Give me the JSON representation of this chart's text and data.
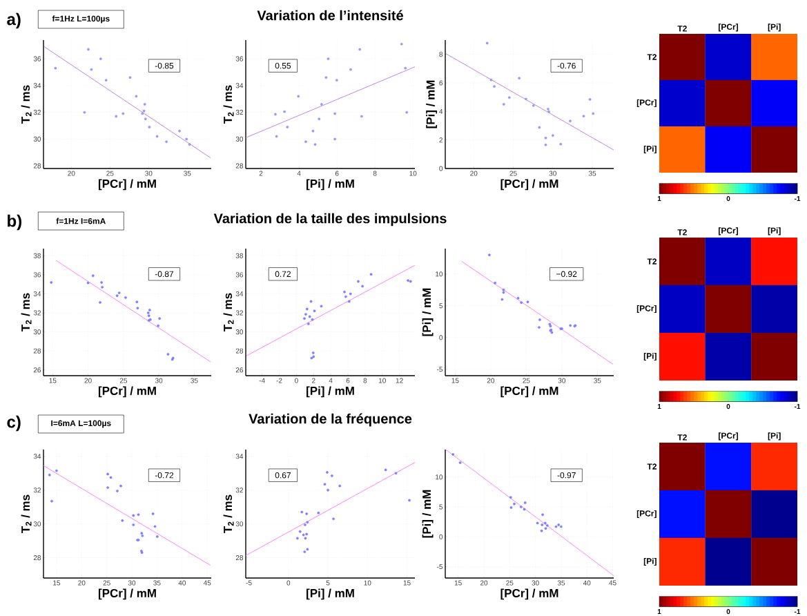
{
  "chart_data": [
    {
      "type": "scatter",
      "title": "a)",
      "subtitle": "f=1Hz L=100µs",
      "xlabel": "[PCr] / mM",
      "ylabel": "T$_{2}$ / ms",
      "xlim": [
        16.4,
        38.1
      ],
      "ylim": [
        27.8,
        37.4
      ],
      "xticks": [
        20,
        25,
        30,
        35
      ],
      "yticks": [
        28,
        30,
        32,
        34,
        36
      ],
      "grid": true,
      "annotations": [
        "-0.85"
      ],
      "series": [
        {
          "marker": "circle",
          "color": "#9999ee",
          "x": [
            17.95,
            22.2,
            22.6,
            23.8,
            24.5,
            21.7,
            25.8,
            26.7,
            27.6,
            28.4,
            29.2,
            29.4,
            29.5,
            29.6,
            30.1,
            31.1,
            32.3,
            34.0,
            34.9,
            35.3
          ],
          "values": [
            35.3,
            36.7,
            35.2,
            36.0,
            34.4,
            32.0,
            31.7,
            31.9,
            34.6,
            33.2,
            31.9,
            32.1,
            32.6,
            31.5,
            30.9,
            30.2,
            29.8,
            30.6,
            30.0,
            29.6
          ]
        },
        {
          "type": "line",
          "color": "#bb77dd",
          "x": [
            16.5,
            38
          ],
          "values": [
            36.9,
            28.6
          ]
        }
      ]
    },
    {
      "type": "scatter",
      "title": "Variation de l’intensité",
      "xlabel": "[Pi] / mM",
      "ylabel": "T$_{2}$ / ms",
      "xlim": [
        1.2,
        10.1
      ],
      "ylim": [
        27.8,
        37.4
      ],
      "xticks": [
        2,
        4,
        6,
        8,
        10
      ],
      "yticks": [
        28,
        30,
        32,
        34,
        36
      ],
      "grid": true,
      "annotations": [
        "0.55"
      ],
      "series": [
        {
          "marker": "circle",
          "color": "#9999ee",
          "x": [
            2.76,
            2.82,
            3.24,
            3.39,
            3.97,
            4.36,
            4.74,
            4.85,
            5.06,
            5.19,
            5.43,
            5.54,
            5.89,
            5.89,
            5.99,
            6.72,
            7.2,
            7.3,
            9.4,
            9.6,
            9.67
          ],
          "values": [
            31.85,
            30.2,
            32.05,
            30.9,
            33.2,
            29.8,
            30.6,
            29.6,
            31.5,
            32.6,
            34.6,
            36.0,
            31.9,
            30.0,
            34.4,
            35.2,
            36.7,
            31.7,
            37.1,
            35.3,
            32.0
          ]
        },
        {
          "type": "line",
          "color": "#bb77dd",
          "x": [
            1.2,
            10.1
          ],
          "values": [
            30.1,
            35.4
          ]
        }
      ]
    },
    {
      "type": "scatter",
      "xlabel": "[PCr] / mM",
      "ylabel": "[Pi] / mM",
      "xlim": [
        16.4,
        37.7
      ],
      "ylim": [
        0,
        9
      ],
      "xticks": [
        20,
        25,
        30,
        35
      ],
      "yticks": [
        0,
        2,
        4,
        6,
        8
      ],
      "grid": true,
      "annotations": [
        "-0.76"
      ],
      "series": [
        {
          "marker": "circle",
          "color": "#9999ee",
          "x": [
            21.7,
            22.2,
            22.6,
            23.8,
            24.5,
            25.75,
            26.6,
            27.55,
            28.3,
            29.1,
            29.1,
            29.4,
            29.5,
            30.0,
            31.0,
            32.2,
            33.9,
            34.7,
            35.1
          ],
          "values": [
            8.78,
            6.21,
            5.75,
            4.5,
            4.97,
            6.33,
            4.87,
            4.41,
            2.88,
            2.14,
            1.66,
            4.17,
            3.98,
            2.31,
            1.71,
            3.33,
            3.67,
            4.84,
            3.85
          ]
        },
        {
          "type": "line",
          "color": "#bb77dd",
          "x": [
            16.5,
            37.7
          ],
          "values": [
            8.04,
            1.3
          ]
        }
      ]
    },
    {
      "type": "heatmap",
      "categories": [
        "T2",
        "[PCr]",
        "[Pi]"
      ],
      "y_categories": [
        "T2",
        "[PCr]",
        "[Pi]"
      ],
      "cells": [
        [
          1,
          -0.85,
          0.55
        ],
        [
          -0.85,
          1,
          -0.76
        ],
        [
          0.55,
          -0.76,
          1
        ]
      ],
      "clim": [
        1,
        -1
      ],
      "cticks": [
        1,
        0,
        -1
      ]
    },
    {
      "type": "scatter",
      "title": "b)",
      "subtitle": "f=1Hz I=6mA",
      "xlabel": "[PCr] / mM",
      "ylabel": "T$_{2}$ / ms",
      "xlim": [
        13.7,
        37.4
      ],
      "ylim": [
        25.4,
        38.75
      ],
      "xticks": [
        15,
        20,
        25,
        30,
        35
      ],
      "yticks": [
        26,
        28,
        30,
        32,
        34,
        36,
        38
      ],
      "grid": true,
      "annotations": [
        "-0.87"
      ],
      "series": [
        {
          "marker": "circle",
          "color": "#7f7fff",
          "x": [
            14.8,
            20.0,
            20.7,
            21.9,
            22.0,
            21.7,
            24.1,
            24.4,
            25.3,
            26.9,
            27.0,
            28.5,
            28.6,
            28.7,
            28.6,
            28.8,
            29.9,
            30.1,
            31.3,
            32.0,
            31.9
          ],
          "values": [
            35.2,
            35.15,
            35.9,
            35.2,
            34.7,
            33.1,
            33.8,
            34.1,
            33.6,
            33.15,
            32.5,
            32.0,
            31.7,
            32.3,
            31.2,
            31.3,
            30.65,
            31.4,
            27.65,
            27.25,
            27.1
          ]
        },
        {
          "type": "line",
          "color": "#ff77ff",
          "x": [
            15.5,
            37.3
          ],
          "values": [
            37.5,
            26.85
          ]
        }
      ]
    },
    {
      "type": "scatter",
      "title": "Variation de la taille des impulsions",
      "xlabel": "[Pi] / mM",
      "ylabel": "T$_{2}$ / ms",
      "xlim": [
        -5.9,
        13.8
      ],
      "ylim": [
        25.4,
        38.75
      ],
      "xticks": [
        -4,
        -2,
        0,
        2,
        4,
        6,
        8,
        10,
        12
      ],
      "yticks": [
        26,
        28,
        30,
        32,
        34,
        36,
        38
      ],
      "grid": true,
      "annotations": [
        "0.72"
      ],
      "series": [
        {
          "marker": "circle",
          "color": "#7f7fff",
          "x": [
            0.93,
            1.09,
            1.24,
            1.4,
            1.55,
            1.7,
            1.86,
            1.77,
            1.96,
            2.0,
            2.1,
            2.9,
            5.6,
            5.75,
            6.15,
            6.3,
            7.2,
            7.7,
            8.7,
            13.0,
            13.3
          ],
          "values": [
            31.4,
            31.85,
            32.4,
            30.85,
            31.6,
            33.2,
            31.3,
            27.25,
            27.8,
            27.4,
            32.2,
            32.7,
            34.2,
            33.7,
            33.2,
            34.0,
            35.3,
            34.8,
            36.05,
            35.4,
            35.3
          ]
        },
        {
          "type": "line",
          "color": "#ff77ff",
          "x": [
            -5.8,
            13.8
          ],
          "values": [
            27.5,
            37.0
          ]
        }
      ]
    },
    {
      "type": "scatter",
      "xlabel": "[PCr] / mM",
      "ylabel": "[Pi] / mM",
      "xlim": [
        13.6,
        37.3
      ],
      "ylim": [
        -6,
        14
      ],
      "xticks": [
        15,
        20,
        25,
        30,
        35
      ],
      "yticks": [
        -5,
        0,
        5,
        10
      ],
      "grid": true,
      "annotations": [
        "−0.92"
      ],
      "series": [
        {
          "marker": "circle",
          "color": "#7f7fff",
          "x": [
            19.8,
            20.6,
            21.6,
            21.8,
            21.8,
            23.85,
            24.3,
            25.2,
            26.9,
            26.8,
            28.3,
            28.4,
            28.4,
            28.6,
            28.5,
            29.85,
            30.0,
            31.2,
            31.8,
            31.9
          ],
          "values": [
            13.0,
            8.6,
            6.0,
            7.5,
            7.1,
            6.2,
            5.5,
            5.6,
            2.8,
            1.6,
            2.1,
            1.8,
            1.1,
            0.8,
            1.2,
            1.4,
            1.4,
            1.9,
            1.8,
            1.9
          ]
        },
        {
          "type": "line",
          "color": "#ff77ff",
          "x": [
            15.9,
            37.2
          ],
          "values": [
            12.0,
            -4.2
          ]
        }
      ]
    },
    {
      "type": "heatmap",
      "categories": [
        "T2",
        "[PCr]",
        "[Pi]"
      ],
      "y_categories": [
        "T2",
        "[PCr]",
        "[Pi]"
      ],
      "cells": [
        [
          1,
          -0.87,
          0.72
        ],
        [
          -0.87,
          1,
          -0.92
        ],
        [
          0.72,
          -0.92,
          1
        ]
      ],
      "clim": [
        1,
        -1
      ],
      "cticks": [
        1,
        0,
        -1
      ]
    },
    {
      "type": "scatter",
      "title": "c)",
      "subtitle": "I=6mA L=100µs",
      "xlabel": "[PCr] / mM",
      "ylabel": "T$_{2}$ / ms",
      "xlim": [
        12.4,
        45.8
      ],
      "ylim": [
        26.8,
        34.4
      ],
      "xticks": [
        15,
        20,
        25,
        30,
        35,
        40,
        45
      ],
      "yticks": [
        28,
        30,
        32,
        34
      ],
      "grid": true,
      "annotations": [
        "-0.72"
      ],
      "series": [
        {
          "marker": "circle",
          "color": "#7f7fff",
          "x": [
            13.6,
            14.05,
            15.0,
            25.2,
            25.8,
            25.2,
            27.1,
            27.8,
            28.1,
            30.3,
            30.3,
            31.3,
            31.1,
            31.3,
            31.95,
            32.1,
            31.9,
            32.0,
            34.2,
            34.6,
            35.05
          ],
          "values": [
            32.9,
            31.35,
            33.15,
            32.95,
            32.75,
            32.15,
            31.95,
            32.25,
            30.2,
            30.5,
            29.95,
            30.55,
            29.05,
            29.05,
            29.45,
            29.3,
            28.4,
            28.3,
            30.6,
            29.85,
            29.25
          ]
        },
        {
          "type": "line",
          "color": "#ff77ff",
          "x": [
            12.4,
            45.65
          ],
          "values": [
            33.45,
            27.55
          ]
        }
      ]
    },
    {
      "type": "scatter",
      "title": "Variation de la fréquence",
      "xlabel": "[Pi] / mM",
      "ylabel": "T$_{2}$ / ms",
      "xlim": [
        -5.4,
        16
      ],
      "ylim": [
        26.8,
        34.4
      ],
      "xticks": [
        -5,
        0,
        5,
        10,
        15
      ],
      "yticks": [
        28,
        30,
        32,
        34
      ],
      "grid": true,
      "annotations": [
        "0.67"
      ],
      "series": [
        {
          "marker": "circle",
          "color": "#7f7fff",
          "x": [
            1.14,
            1.48,
            1.7,
            1.9,
            2.05,
            2.1,
            2.15,
            2.3,
            2.3,
            2.4,
            2.4,
            3.8,
            4.6,
            4.9,
            5.0,
            5.5,
            5.7,
            6.5,
            12.3,
            13.6,
            15.3
          ],
          "values": [
            29.15,
            29.55,
            30.7,
            29.35,
            28.35,
            29.95,
            29.15,
            30.6,
            29.4,
            28.5,
            30.1,
            30.65,
            32.35,
            33.05,
            32.0,
            32.85,
            30.3,
            32.25,
            33.2,
            33.0,
            31.4
          ]
        },
        {
          "type": "line",
          "color": "#ff77ff",
          "x": [
            -5.4,
            16
          ],
          "values": [
            28.13,
            33.64
          ]
        }
      ]
    },
    {
      "type": "scatter",
      "xlabel": "[PCr] / mM",
      "ylabel": "[Pi] / mM",
      "xlim": [
        12.5,
        45.2
      ],
      "ylim": [
        -6.9,
        14.6
      ],
      "xticks": [
        15,
        20,
        25,
        30,
        35,
        40,
        45
      ],
      "yticks": [
        -5,
        0,
        5,
        10
      ],
      "grid": true,
      "annotations": [
        "-0.97"
      ],
      "series": [
        {
          "marker": "circle",
          "color": "#7f7fff",
          "x": [
            14.0,
            15.4,
            25.2,
            25.3,
            25.9,
            27.2,
            27.85,
            28.0,
            30.4,
            31.2,
            31.3,
            31.4,
            31.9,
            32.0,
            32.3,
            34.0,
            34.5,
            35.0
          ],
          "values": [
            13.8,
            12.4,
            6.6,
            4.9,
            5.5,
            5.0,
            4.6,
            5.7,
            2.3,
            1.0,
            2.0,
            3.7,
            2.3,
            1.4,
            1.9,
            1.7,
            2.0,
            1.7
          ]
        },
        {
          "type": "line",
          "color": "#ff77ff",
          "x": [
            12.6,
            45.2
          ],
          "values": [
            14.6,
            -6.5
          ]
        }
      ]
    },
    {
      "type": "heatmap",
      "categories": [
        "T2",
        "[PCr]",
        "[Pi]"
      ],
      "y_categories": [
        "T2",
        "[PCr]",
        "[Pi]"
      ],
      "cells": [
        [
          1,
          -0.72,
          0.67
        ],
        [
          -0.72,
          1,
          -0.97
        ],
        [
          0.67,
          -0.97,
          1
        ]
      ],
      "clim": [
        1,
        -1
      ],
      "cticks": [
        1,
        0,
        -1
      ]
    }
  ]
}
